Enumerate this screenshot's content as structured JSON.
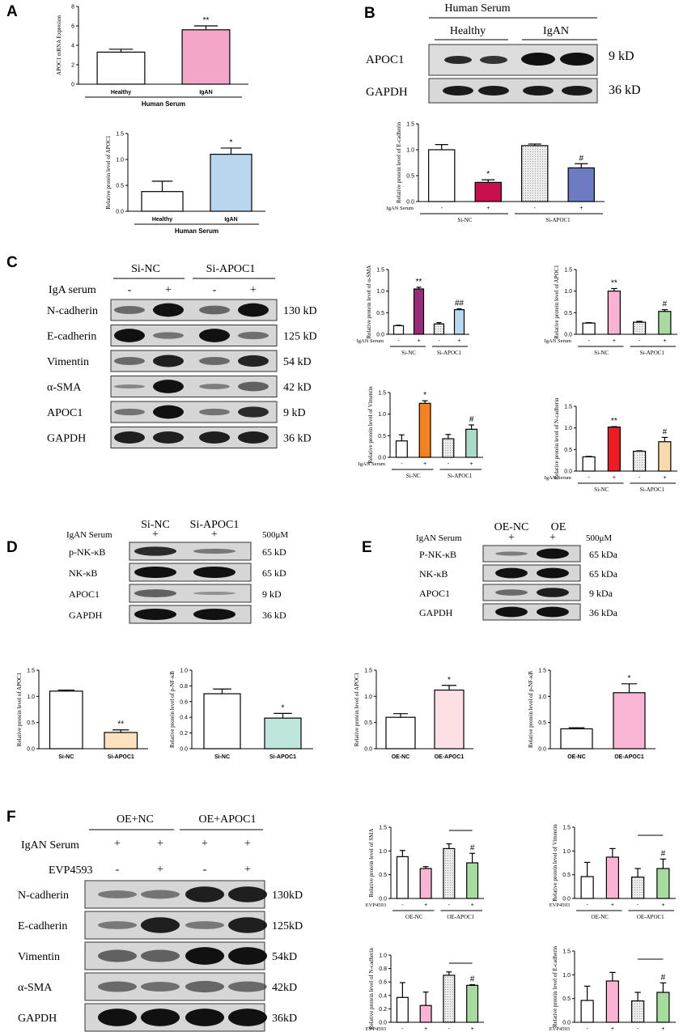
{
  "panels": {
    "A": "A",
    "B": "B",
    "C": "C",
    "D": "D",
    "E": "E",
    "F": "F"
  },
  "kd": {
    "k9": "9 kD",
    "k36": "36 kD",
    "k130": "130 kD",
    "k125": "125 kD",
    "k54": "54 kD",
    "k42": "42 kD",
    "k65": "65 kD",
    "kda65": "65 kDa",
    "kda9": "9 kDa",
    "kda36": "36 kDa",
    "f130": "130kD",
    "f125": "125kD",
    "f54": "54kD",
    "f42": "42kD",
    "f36": "36kD"
  },
  "conc": "500μM",
  "blotB": {
    "header": "Human Serum",
    "g1": "Healthy",
    "g2": "IgAN",
    "rows": [
      "APOC1",
      "GAPDH"
    ]
  },
  "blotC": {
    "g1": "Si-NC",
    "g2": "Si-APOC1",
    "treat": "IgA serum",
    "rows": [
      "N-cadherin",
      "E-cadherin",
      "Vimentin",
      "α-SMA",
      "APOC1",
      "GAPDH"
    ]
  },
  "blotD": {
    "g1": "Si-NC",
    "g2": "Si-APOC1",
    "treat": "IgAN Serum",
    "rows": [
      "p-NK-κB",
      "NK-κB",
      "APOC1",
      "GAPDH"
    ]
  },
  "blotE": {
    "g1": "OE-NC",
    "g2": "OE",
    "treat": "IgAN Serum",
    "rows": [
      "P-NK-κB",
      "NK-κB",
      "APOC1",
      "GAPDH"
    ]
  },
  "blotF": {
    "g1": "OE+NC",
    "g2": "OE+APOC1",
    "treat": "IgAN Serum",
    "treat2": "EVP4593",
    "rows": [
      "N-cadherin",
      "E-cadherin",
      "Vimentin",
      "α-SMA",
      "GAPDH"
    ]
  },
  "signs": {
    "plus": "+",
    "minus": "-"
  },
  "chart_data": [
    {
      "id": "A1",
      "type": "bar",
      "ylabel": "APOC1 mRNA Expresion",
      "xlabel": "Human Serum",
      "categories": [
        "Healthy",
        "IgAN"
      ],
      "values": [
        3.3,
        5.6
      ],
      "errors": [
        0.3,
        0.4
      ],
      "ylim": [
        0,
        8
      ],
      "ticks": [
        0,
        2,
        4,
        6,
        8
      ],
      "sig": [
        "",
        "**"
      ]
    },
    {
      "id": "A2",
      "type": "bar",
      "ylabel": "Relative protein level of APOC1",
      "xlabel": "Human Serum",
      "categories": [
        "Healthy",
        "IgAN"
      ],
      "values": [
        0.38,
        1.1
      ],
      "errors": [
        0.2,
        0.12
      ],
      "ylim": [
        0,
        1.5
      ],
      "ticks": [
        0.0,
        0.5,
        1.0,
        1.5
      ],
      "sig": [
        "",
        "*"
      ]
    },
    {
      "id": "B1",
      "type": "bar",
      "ylabel": "Relative protein level of E-cadherin",
      "rowlabel": "IgAN Serum",
      "categories": [
        "-",
        "+",
        "-",
        "+"
      ],
      "groups": [
        "Si-NC",
        "Si-APOC1"
      ],
      "values": [
        1.0,
        0.37,
        1.08,
        0.65
      ],
      "errors": [
        0.1,
        0.05,
        0.03,
        0.08
      ],
      "ylim": [
        0,
        1.5
      ],
      "ticks": [
        0.0,
        0.5,
        1.0,
        1.5
      ],
      "sig": [
        "",
        "*",
        "",
        "#"
      ]
    },
    {
      "id": "C1",
      "type": "bar",
      "ylabel": "Relative protein level of α-SMA",
      "rowlabel": "IgAN Serum",
      "categories": [
        "-",
        "+",
        "-",
        "+"
      ],
      "groups": [
        "Si-NC",
        "Si-APOC1"
      ],
      "values": [
        0.2,
        1.05,
        0.24,
        0.57
      ],
      "errors": [
        0.01,
        0.04,
        0.03,
        0.02
      ],
      "ylim": [
        0,
        1.5
      ],
      "ticks": [
        0.0,
        0.5,
        1.0,
        1.5
      ],
      "sig": [
        "",
        "**",
        "",
        "##"
      ]
    },
    {
      "id": "C2",
      "type": "bar",
      "ylabel": "Relative protein level of APOC1",
      "rowlabel": "IgAN Serum",
      "categories": [
        "-",
        "+",
        "-",
        "+"
      ],
      "groups": [
        "Si-NC",
        "Si-APOC1"
      ],
      "values": [
        0.26,
        1.0,
        0.28,
        0.53
      ],
      "errors": [
        0.01,
        0.06,
        0.02,
        0.04
      ],
      "ylim": [
        0,
        1.5
      ],
      "ticks": [
        0.0,
        0.5,
        1.0,
        1.5
      ],
      "sig": [
        "",
        "**",
        "",
        "#"
      ]
    },
    {
      "id": "C3",
      "type": "bar",
      "ylabel": "Relative protein level of Vimentin",
      "rowlabel": "IgAN Serum",
      "categories": [
        "-",
        "+",
        "-",
        "+"
      ],
      "groups": [
        "Si-NC",
        "Si-APOC1"
      ],
      "values": [
        0.38,
        1.25,
        0.43,
        0.65
      ],
      "errors": [
        0.14,
        0.06,
        0.1,
        0.1
      ],
      "ylim": [
        0,
        1.5
      ],
      "ticks": [
        0.0,
        0.5,
        1.0,
        1.5
      ],
      "sig": [
        "",
        "*",
        "",
        "#"
      ]
    },
    {
      "id": "C4",
      "type": "bar",
      "ylabel": "Relative protein level of N-cadherin",
      "rowlabel": "IgAN Serum",
      "categories": [
        "-",
        "+",
        "-",
        "+"
      ],
      "groups": [
        "Si-NC",
        "Si-APOC1"
      ],
      "values": [
        0.33,
        1.02,
        0.46,
        0.68
      ],
      "errors": [
        0.01,
        0.01,
        0.01,
        0.1
      ],
      "ylim": [
        0,
        1.5
      ],
      "ticks": [
        0.0,
        0.5,
        1.0,
        1.5
      ],
      "sig": [
        "",
        "**",
        "",
        "#"
      ]
    },
    {
      "id": "D1",
      "type": "bar",
      "ylabel": "Relative protein level of APOC1",
      "categories": [
        "Si-NC",
        "Si-APOC1"
      ],
      "values": [
        1.1,
        0.31
      ],
      "errors": [
        0.02,
        0.05
      ],
      "ylim": [
        0,
        1.5
      ],
      "ticks": [
        0.0,
        0.5,
        1.0,
        1.5
      ],
      "sig": [
        "",
        "**"
      ]
    },
    {
      "id": "D2",
      "type": "bar",
      "ylabel": "Relative protein level of p-NF-κB",
      "categories": [
        "Si-NC",
        "Si-APOC1"
      ],
      "values": [
        0.7,
        0.39
      ],
      "errors": [
        0.06,
        0.06
      ],
      "ylim": [
        0,
        1.0
      ],
      "ticks": [
        0.0,
        0.2,
        0.4,
        0.6,
        0.8,
        1.0
      ],
      "sig": [
        "",
        "*"
      ]
    },
    {
      "id": "E1",
      "type": "bar",
      "ylabel": "Relative protein level of APOC1",
      "categories": [
        "OE-NC",
        "OE-APOC1"
      ],
      "values": [
        0.6,
        1.12
      ],
      "errors": [
        0.07,
        0.09
      ],
      "ylim": [
        0,
        1.5
      ],
      "ticks": [
        0.0,
        0.5,
        1.0,
        1.5
      ],
      "sig": [
        "",
        "*"
      ]
    },
    {
      "id": "E2",
      "type": "bar",
      "ylabel": "Relative protein level of p-NF-κB",
      "categories": [
        "OE-NC",
        "OE-APOC1"
      ],
      "values": [
        0.38,
        1.07
      ],
      "errors": [
        0.02,
        0.17
      ],
      "ylim": [
        0,
        1.5
      ],
      "ticks": [
        0.0,
        0.5,
        1.0,
        1.5
      ],
      "sig": [
        "",
        "*"
      ]
    },
    {
      "id": "F1",
      "type": "bar",
      "ylabel": "Relative protein level of SMA",
      "rowlabel": "EVP4593",
      "categories": [
        "-",
        "+",
        "-",
        "+"
      ],
      "groups": [
        "OE-NC",
        "OE-APOC1"
      ],
      "values": [
        0.88,
        0.63,
        1.05,
        0.75
      ],
      "errors": [
        0.13,
        0.04,
        0.1,
        0.2
      ],
      "ylim": [
        0,
        1.5
      ],
      "ticks": [
        0.0,
        0.5,
        1.0,
        1.5
      ],
      "sig": [
        "",
        "",
        "",
        "#"
      ]
    },
    {
      "id": "F2",
      "type": "bar",
      "ylabel": "Relative protein level of Vimentin",
      "rowlabel": "EVP4593",
      "categories": [
        "-",
        "+",
        "-",
        "+"
      ],
      "groups": [
        "OE-NC",
        "OE-APOC1"
      ],
      "values": [
        0.46,
        0.87,
        0.45,
        0.63
      ],
      "errors": [
        0.3,
        0.18,
        0.18,
        0.2
      ],
      "ylim": [
        0,
        1.5
      ],
      "ticks": [
        0.0,
        0.5,
        1.0,
        1.5
      ],
      "sig": [
        "",
        "",
        "",
        "#"
      ]
    },
    {
      "id": "F3",
      "type": "bar",
      "ylabel": "Relative protein level of N-cadherin",
      "rowlabel": "EVP4593",
      "categories": [
        "-",
        "+",
        "-",
        "+"
      ],
      "groups": [
        "OE-NC",
        "OE-APOC1"
      ],
      "values": [
        0.37,
        0.25,
        0.7,
        0.55
      ],
      "errors": [
        0.22,
        0.2,
        0.05,
        0.01
      ],
      "ylim": [
        0,
        1.0
      ],
      "ticks": [
        0.0,
        0.2,
        0.4,
        0.6,
        0.8,
        1.0
      ],
      "sig": [
        "",
        "",
        "",
        "#"
      ]
    },
    {
      "id": "F4",
      "type": "bar",
      "ylabel": "Relative protein level of E-cadherin",
      "rowlabel": "EVP4593",
      "categories": [
        "-",
        "+",
        "-",
        "+"
      ],
      "groups": [
        "OE-NC",
        "OE-APOC1"
      ],
      "values": [
        0.46,
        0.87,
        0.45,
        0.63
      ],
      "errors": [
        0.3,
        0.18,
        0.18,
        0.2
      ],
      "ylim": [
        0,
        1.5
      ],
      "ticks": [
        0.0,
        0.5,
        1.0,
        1.5
      ],
      "sig": [
        "",
        "",
        "",
        "#"
      ]
    }
  ]
}
